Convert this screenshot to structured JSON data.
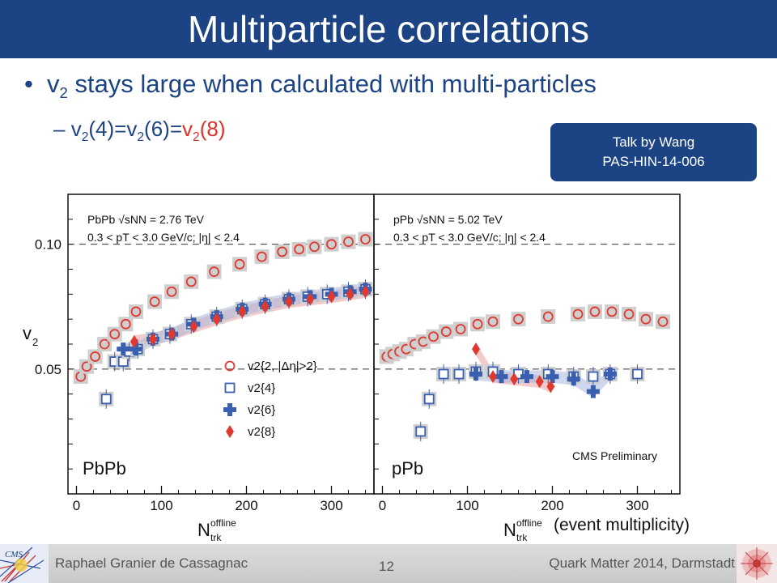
{
  "slide": {
    "title": "Multiparticle correlations",
    "bullet": {
      "symbol": "•",
      "text_v": "v",
      "text_sub": "2",
      "text_rest": " stays large when calculated with multi-particles"
    },
    "sub_bullet": {
      "dash": "–",
      "v1": "v",
      "s1": "2",
      "a1": "(4)=",
      "v2": "v",
      "s2": "2",
      "a2": "(6)=",
      "v3": "v",
      "s3": "2",
      "a3": "(8)"
    },
    "talk_box": {
      "line1": "Talk by Wang",
      "line2": "PAS-HIN-14-006"
    },
    "event_multiplicity": "(event multiplicity)",
    "footer": {
      "author": "Raphael Granier de Cassagnac",
      "page": "12",
      "conference": "Quark Matter 2014, Darmstadt"
    },
    "colors": {
      "title_bg": "#1c4383",
      "text_blue": "#1c4383",
      "accent_red": "#e0302a",
      "series_red": "#e03a30",
      "series_blue": "#3a5fb0"
    }
  },
  "chart_data": [
    {
      "type": "scatter",
      "panel_label": "PbPb",
      "header_line1": "PbPb √sNN = 2.76 TeV",
      "header_line2": "0.3 < pT < 3.0 GeV/c; |η| < 2.4",
      "xlabel": "N_trk^offline",
      "ylabel": "v2",
      "xlim": [
        -10,
        350
      ],
      "ylim": [
        0.0,
        0.12
      ],
      "x_ticks": [
        "0",
        "100",
        "200",
        "300"
      ],
      "y_ticks": [
        "0.05",
        "0.10"
      ],
      "legend_entries": [
        "v2{2, |Δη|>2}",
        "v2{4}",
        "v2{6}",
        "v2{8}"
      ],
      "series": [
        {
          "name": "v2{2, |Δη|>2}",
          "marker": "open-circle",
          "x": [
            5,
            12,
            22,
            33,
            45,
            58,
            70,
            92,
            112,
            135,
            162,
            192,
            218,
            242,
            262,
            280,
            300,
            320,
            340
          ],
          "y": [
            0.047,
            0.051,
            0.055,
            0.06,
            0.064,
            0.068,
            0.073,
            0.077,
            0.081,
            0.085,
            0.089,
            0.092,
            0.095,
            0.097,
            0.098,
            0.099,
            0.1,
            0.101,
            0.102
          ]
        },
        {
          "name": "v2{4}",
          "marker": "open-square",
          "x": [
            35,
            45,
            55,
            62,
            72,
            90,
            110,
            135,
            165,
            195,
            222,
            250,
            272,
            295,
            320,
            340
          ],
          "y": [
            0.038,
            0.053,
            0.053,
            0.057,
            0.058,
            0.062,
            0.064,
            0.068,
            0.071,
            0.074,
            0.076,
            0.078,
            0.079,
            0.08,
            0.081,
            0.082
          ]
        },
        {
          "name": "v2{6}",
          "marker": "filled-cross",
          "x": [
            55,
            70,
            90,
            112,
            138,
            165,
            195,
            222,
            250,
            275,
            300,
            322,
            340
          ],
          "y": [
            0.058,
            0.058,
            0.062,
            0.064,
            0.068,
            0.071,
            0.074,
            0.076,
            0.078,
            0.079,
            0.08,
            0.081,
            0.082
          ]
        },
        {
          "name": "v2{8}",
          "marker": "filled-diamond",
          "x": [
            68,
            90,
            112,
            138,
            165,
            195,
            222,
            250,
            275,
            300,
            322,
            340
          ],
          "y": [
            0.061,
            0.062,
            0.064,
            0.067,
            0.07,
            0.073,
            0.075,
            0.077,
            0.078,
            0.079,
            0.08,
            0.081
          ]
        }
      ]
    },
    {
      "type": "scatter",
      "panel_label": "pPb",
      "header_line1": "pPb √sNN = 5.02 TeV",
      "header_line2": "0.3 < pT < 3.0 GeV/c; |η| < 2.4",
      "annotation": "CMS Preliminary",
      "xlabel": "N_trk^offline",
      "xlim": [
        -10,
        350
      ],
      "ylim": [
        0.0,
        0.12
      ],
      "x_ticks": [
        "0",
        "100",
        "200",
        "300"
      ],
      "series": [
        {
          "name": "v2{2, |Δη|>2}",
          "marker": "open-circle",
          "x": [
            5,
            12,
            20,
            28,
            38,
            48,
            60,
            75,
            92,
            112,
            130,
            160,
            195,
            230,
            250,
            270,
            290,
            310,
            330
          ],
          "y": [
            0.055,
            0.056,
            0.057,
            0.058,
            0.06,
            0.061,
            0.063,
            0.065,
            0.066,
            0.068,
            0.069,
            0.07,
            0.071,
            0.072,
            0.073,
            0.073,
            0.072,
            0.07,
            0.069
          ]
        },
        {
          "name": "v2{4}",
          "marker": "open-square",
          "x": [
            45,
            55,
            72,
            90,
            110,
            130,
            160,
            195,
            225,
            248,
            268,
            300
          ],
          "y": [
            0.025,
            0.038,
            0.048,
            0.048,
            0.049,
            0.049,
            0.048,
            0.048,
            0.047,
            0.047,
            0.048,
            0.048
          ]
        },
        {
          "name": "v2{6}",
          "marker": "filled-cross",
          "x": [
            110,
            140,
            170,
            200,
            225,
            248,
            268
          ],
          "y": [
            0.048,
            0.047,
            0.047,
            0.047,
            0.046,
            0.041,
            0.048
          ]
        },
        {
          "name": "v2{8}",
          "marker": "filled-diamond",
          "x": [
            110,
            130,
            155,
            185,
            198
          ],
          "y": [
            0.058,
            0.047,
            0.046,
            0.045,
            0.043
          ]
        }
      ]
    }
  ]
}
